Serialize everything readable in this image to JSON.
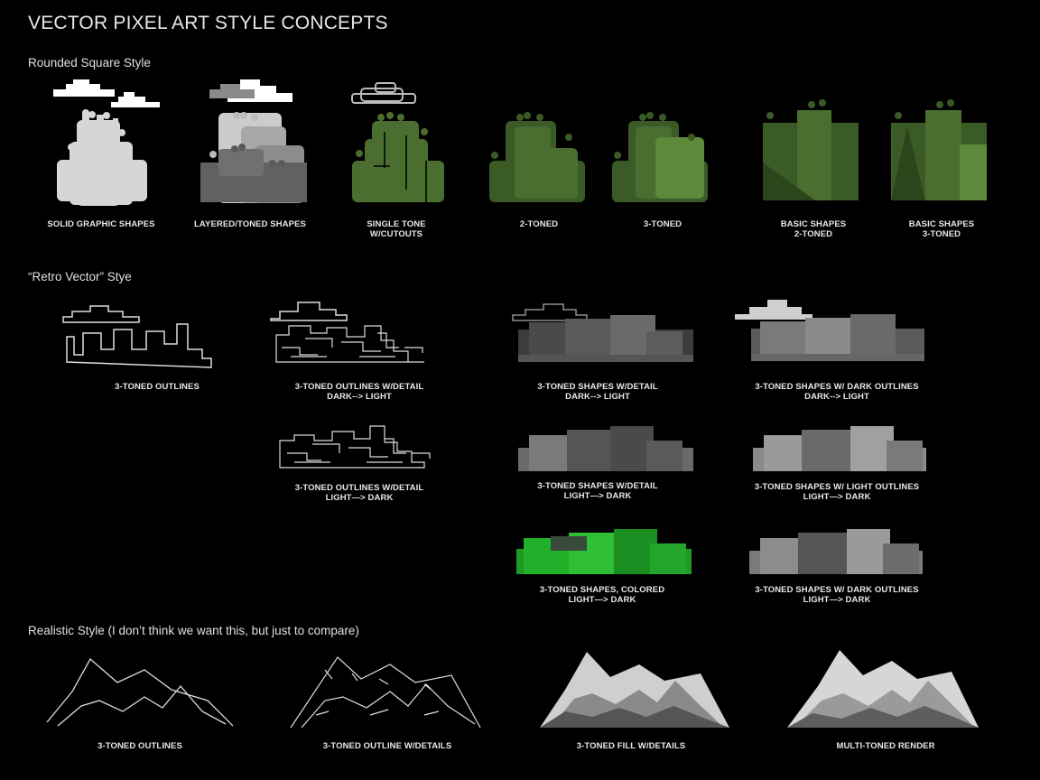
{
  "title": "VECTOR PIXEL ART STYLE CONCEPTS",
  "sections": {
    "rounded": "Rounded Square Style",
    "retro": "“Retro Vector” Stye",
    "realistic": "Realistic Style (I don’t think we want this, but just to compare)"
  },
  "rounded_captions": [
    [
      "SOLID GRAPHIC SHAPES"
    ],
    [
      "LAYERED/TONED SHAPES"
    ],
    [
      "SINGLE TONE",
      "W/CUTOUTS"
    ],
    [
      "2-TONED"
    ],
    [
      "3-TONED"
    ],
    [
      "BASIC SHAPES",
      "2-TONED"
    ],
    [
      "BASIC SHAPES",
      "3-TONED"
    ]
  ],
  "retro_captions": {
    "outlines": [
      "3-TONED OUTLINES"
    ],
    "outlines_detail_dl": [
      "3-TONED OUTLINES W/DETAIL",
      "DARK--> LIGHT"
    ],
    "outlines_detail_ld": [
      "3-TONED OUTLINES W/DETAIL",
      "LIGHT—> DARK"
    ],
    "shapes_detail_dl": [
      "3-TONED SHAPES W/DETAIL",
      "DARK--> LIGHT"
    ],
    "shapes_detail_ld": [
      "3-TONED SHAPES W/DETAIL",
      "LIGHT—> DARK"
    ],
    "shapes_colored": [
      "3-TONED SHAPES, COLORED",
      "LIGHT—> DARK"
    ],
    "shapes_dark_outlines_dl": [
      "3-TONED SHAPES W/ DARK OUTLINES",
      "DARK--> LIGHT"
    ],
    "shapes_light_outlines_ld": [
      "3-TONED SHAPES W/ LIGHT OUTLINES",
      "LIGHT—> DARK"
    ],
    "shapes_dark_outlines_ld": [
      "3-TONED SHAPES W/ DARK OUTLINES",
      "LIGHT—> DARK"
    ]
  },
  "realistic_captions": [
    [
      "3-TONED OUTLINES"
    ],
    [
      "3-TONED OUTLINE W/DETAILS"
    ],
    [
      "3-TONED FILL W/DETAILS"
    ],
    [
      "MULTI-TONED RENDER"
    ]
  ],
  "colors": {
    "background": "#000000",
    "green_dark": "#3a5a26",
    "green_mid": "#4a6e30",
    "green_light": "#5c8a3a",
    "bright_green": "#22b02a",
    "gray_light": "#cfcfcf",
    "gray_mid": "#8a8a8a",
    "gray_dark": "#555555"
  }
}
